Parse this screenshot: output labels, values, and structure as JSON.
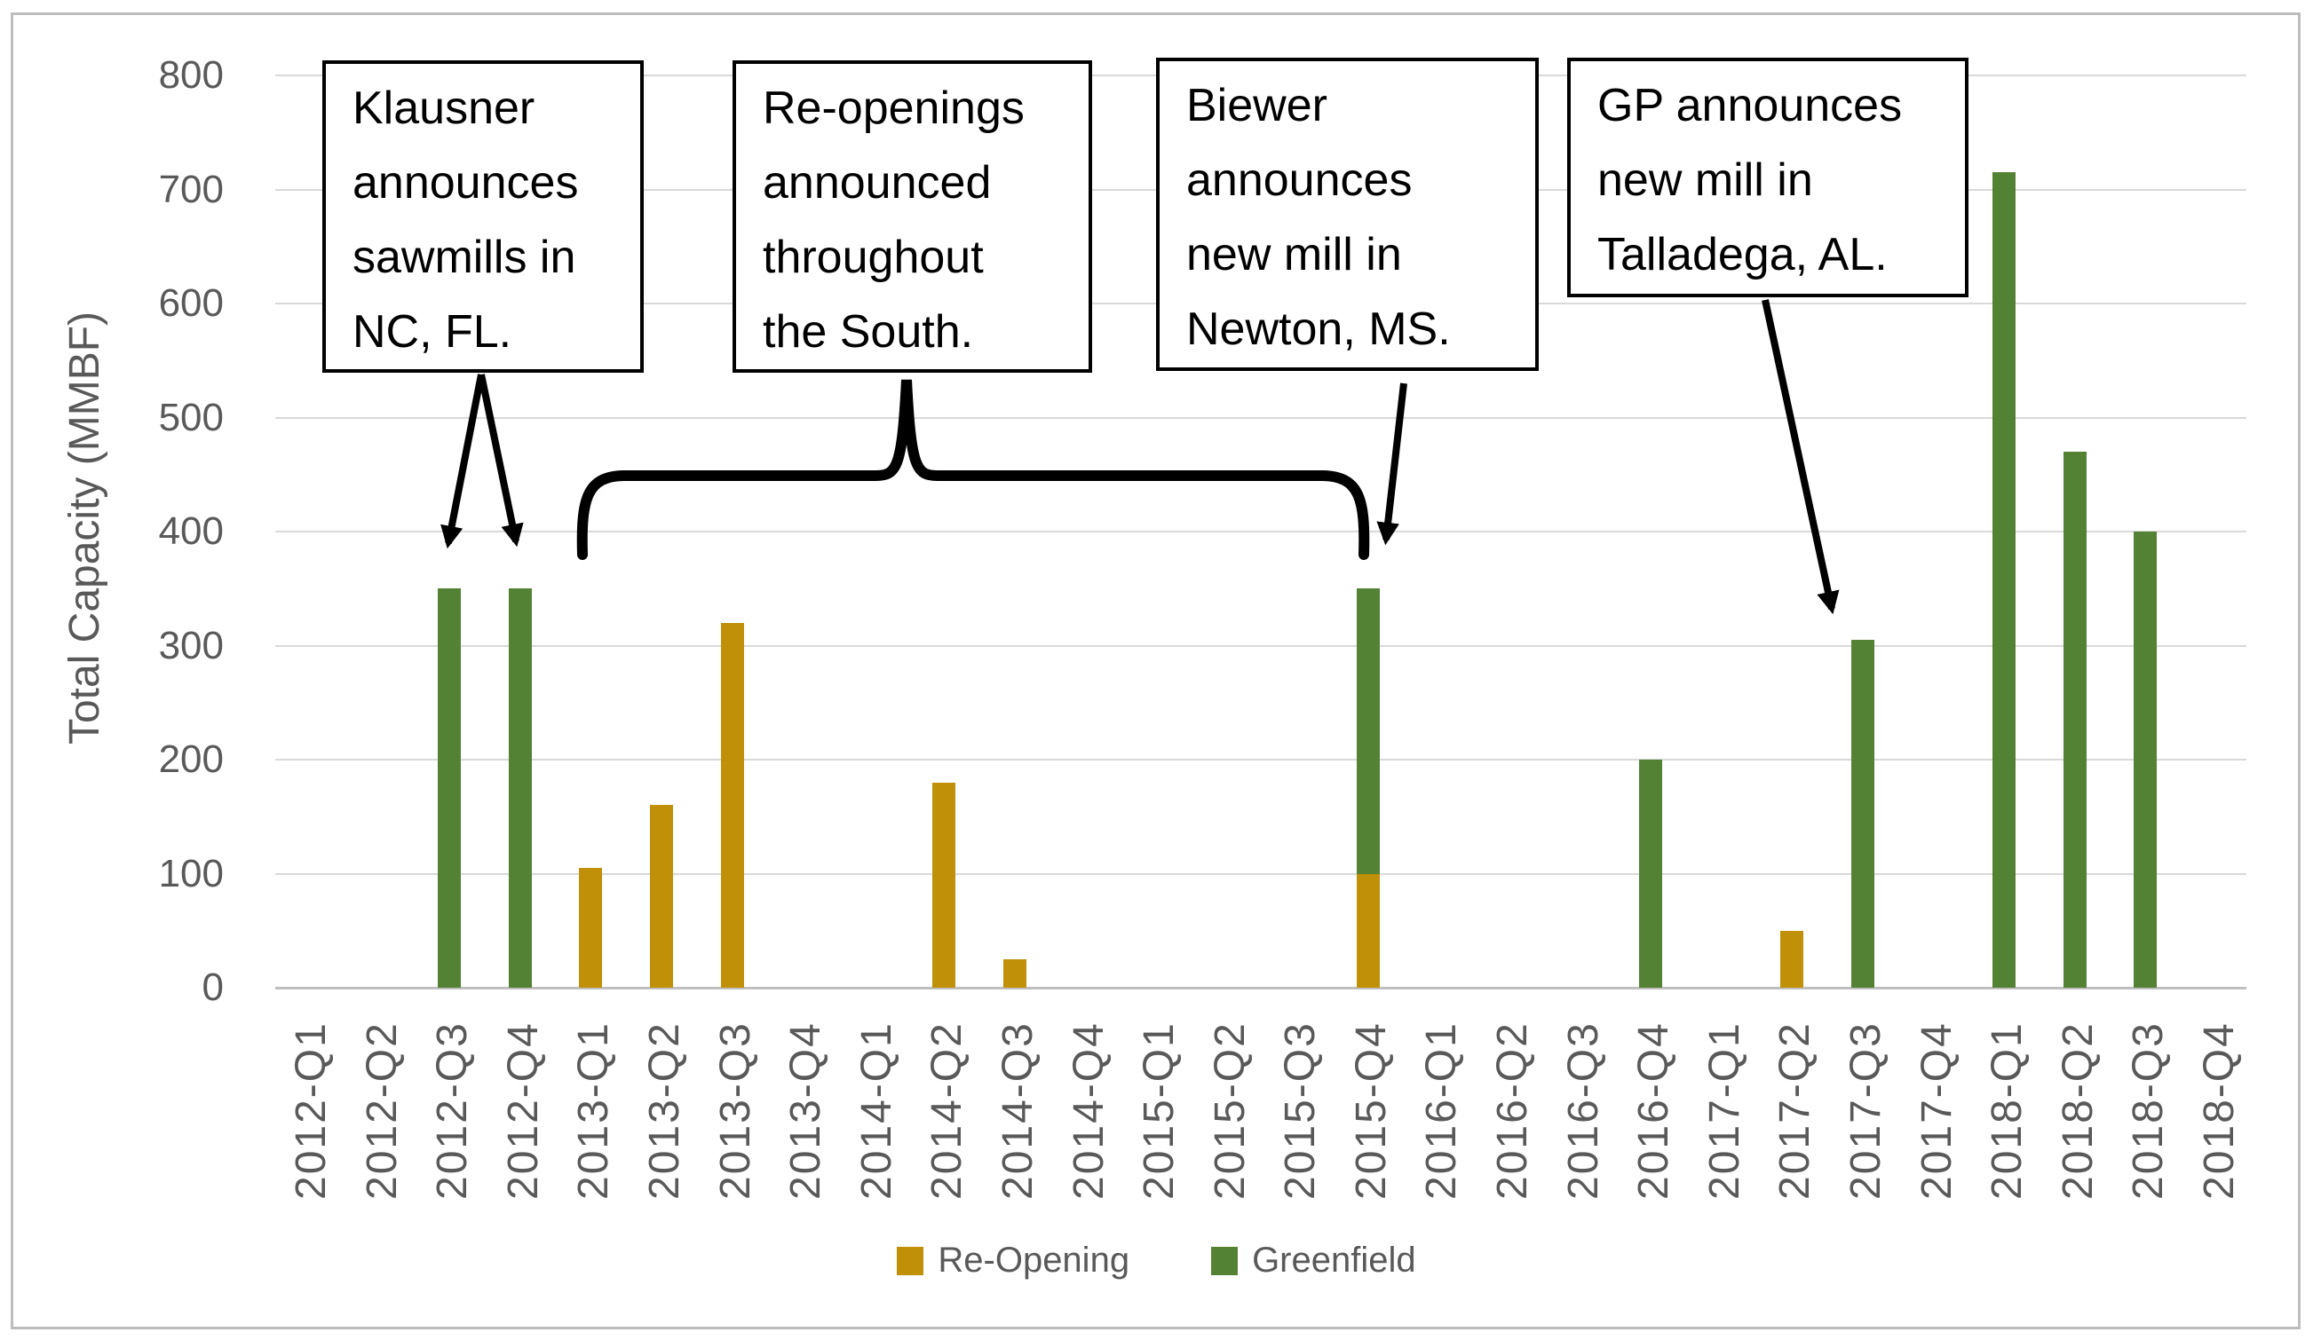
{
  "chart_data": {
    "type": "bar",
    "stacked": true,
    "title": "",
    "xlabel": "",
    "ylabel": "Total Capacity (MMBF)",
    "ylim": [
      0,
      800
    ],
    "yticks": [
      0,
      100,
      200,
      300,
      400,
      500,
      600,
      700,
      800
    ],
    "grid": true,
    "legend_position": "bottom",
    "categories": [
      "2012-Q1",
      "2012-Q2",
      "2012-Q3",
      "2012-Q4",
      "2013-Q1",
      "2013-Q2",
      "2013-Q3",
      "2013-Q4",
      "2014-Q1",
      "2014-Q2",
      "2014-Q3",
      "2014-Q4",
      "2015-Q1",
      "2015-Q2",
      "2015-Q3",
      "2015-Q4",
      "2016-Q1",
      "2016-Q2",
      "2016-Q3",
      "2016-Q4",
      "2017-Q1",
      "2017-Q2",
      "2017-Q3",
      "2017-Q4",
      "2018-Q1",
      "2018-Q2",
      "2018-Q3",
      "2018-Q4"
    ],
    "series": [
      {
        "name": "Re-Opening",
        "color": "#C09008",
        "values": [
          null,
          null,
          null,
          null,
          105,
          160,
          320,
          null,
          null,
          180,
          25,
          null,
          null,
          null,
          null,
          100,
          null,
          null,
          null,
          null,
          null,
          50,
          null,
          null,
          null,
          null,
          null,
          null
        ]
      },
      {
        "name": "Greenfield",
        "color": "#548235",
        "values": [
          null,
          null,
          350,
          350,
          null,
          null,
          null,
          null,
          null,
          null,
          null,
          null,
          null,
          null,
          null,
          250,
          null,
          null,
          null,
          200,
          null,
          null,
          305,
          null,
          715,
          470,
          400,
          null
        ]
      }
    ]
  },
  "annotations": [
    {
      "id": "klausner",
      "lines": [
        "Klausner",
        "announces",
        "sawmills in",
        "NC, FL."
      ],
      "target": "2012-Q3 and 2012-Q4 bars"
    },
    {
      "id": "reopenings",
      "lines": [
        "Re-openings",
        "announced",
        "throughout",
        "the South."
      ],
      "target": "2013-Q1 through 2015-Q4 bars"
    },
    {
      "id": "biewer",
      "lines": [
        "Biewer",
        "announces",
        "new mill in",
        "Newton, MS."
      ],
      "target": "2015-Q4 bar"
    },
    {
      "id": "gp",
      "lines": [
        "GP announces",
        "new mill in",
        "Talladega, AL."
      ],
      "target": "2017-Q3 bar"
    }
  ],
  "legend": {
    "items": [
      {
        "label": "Re-Opening",
        "color": "#C09008"
      },
      {
        "label": "Greenfield",
        "color": "#548235"
      }
    ]
  },
  "colors": {
    "reopening": "#C09008",
    "greenfield": "#548235",
    "axis_text": "#595959",
    "gridline": "#D9D9D9",
    "annotation_border": "#000000",
    "outer_border": "#BDBDBD"
  }
}
